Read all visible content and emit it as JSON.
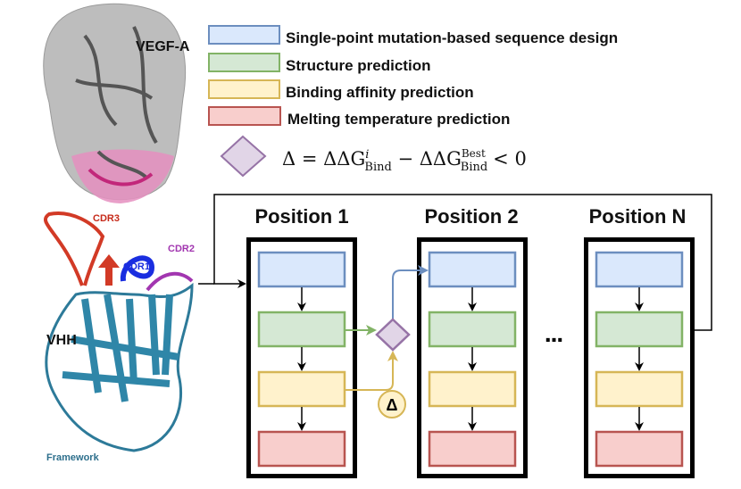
{
  "legend": {
    "items": [
      {
        "label": "Single-point mutation-based sequence design",
        "fill": "#dae8fc",
        "stroke": "#6c8ebf"
      },
      {
        "label": "Structure prediction",
        "fill": "#d5e8d4",
        "stroke": "#82b366"
      },
      {
        "label": "Binding affinity prediction",
        "fill": "#fff2cc",
        "stroke": "#d6b656"
      },
      {
        "label": "Melting temperature prediction",
        "fill": "#f8cecc",
        "stroke": "#b85450"
      }
    ],
    "formula": {
      "lhs": "Δ = ΔΔG",
      "sup1": "i",
      "sub1": "Bind",
      "minus": " − ΔΔG",
      "sup2": "Best",
      "sub2": "Bind",
      "rhs": "< 0"
    },
    "diamond_fill": "#e1d5e7",
    "diamond_stroke": "#9673a6"
  },
  "proteins": {
    "antigen_label": "VEGF-A",
    "nanobody_label": "VHH",
    "cdr3": "CDR3",
    "cdr1": "CDR1",
    "cdr2": "CDR2",
    "framework": "Framework"
  },
  "pipeline": {
    "positions": [
      "Position 1",
      "Position 2",
      "Position N"
    ],
    "ellipsis": "...",
    "delta_badge": "Δ"
  }
}
